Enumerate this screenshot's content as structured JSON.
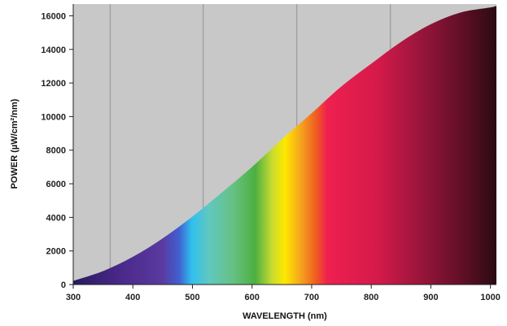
{
  "chart_data": {
    "type": "area",
    "xlabel": "WAVELENGTH (nm)",
    "ylabel": "POWER (µW/cm²/nm)",
    "xlim": [
      300,
      1010
    ],
    "ylim": [
      0,
      16700
    ],
    "x_ticks": [
      300,
      400,
      500,
      600,
      700,
      800,
      900,
      1000
    ],
    "y_ticks": [
      0,
      2000,
      4000,
      6000,
      8000,
      10000,
      12000,
      14000,
      16000
    ],
    "grid": "vertical lines only",
    "background_color": "#c8c8c8",
    "x": [
      300,
      350,
      400,
      450,
      500,
      550,
      600,
      650,
      700,
      750,
      800,
      850,
      900,
      950,
      1000,
      1010
    ],
    "y": [
      220,
      800,
      1650,
      2750,
      4050,
      5500,
      7000,
      8650,
      10200,
      11800,
      13150,
      14450,
      15500,
      16200,
      16500,
      16600
    ],
    "spectrum_fill": "color gradient from violet through blue, green, yellow, red to dark maroon"
  }
}
